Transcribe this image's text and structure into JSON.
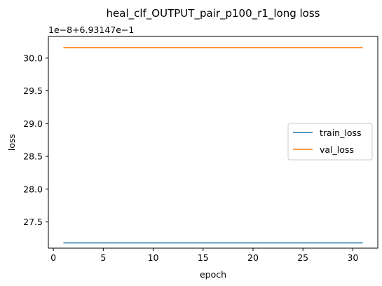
{
  "chart_data": {
    "type": "line",
    "title": "heal_clf_OUTPUT_pair_p100_r1_long loss",
    "xlabel": "epoch",
    "ylabel": "loss",
    "y_offset_text": "1e−8+6.93147e−1",
    "xlim": [
      -0.5,
      32.5
    ],
    "ylim": [
      27.1,
      30.33
    ],
    "x_ticks": [
      0,
      5,
      10,
      15,
      20,
      25,
      30
    ],
    "x_tick_labels": [
      "0",
      "5",
      "10",
      "15",
      "20",
      "25",
      "30"
    ],
    "y_ticks": [
      27.5,
      28.0,
      28.5,
      29.0,
      29.5,
      30.0
    ],
    "y_tick_labels": [
      "27.5",
      "28.0",
      "28.5",
      "29.0",
      "29.5",
      "30.0"
    ],
    "grid": false,
    "legend_position": "center-right",
    "series": [
      {
        "name": "train_loss",
        "color": "#1f77b4",
        "x": [
          1,
          31
        ],
        "y": [
          27.18,
          27.18
        ]
      },
      {
        "name": "val_loss",
        "color": "#ff7f0e",
        "x": [
          1,
          31
        ],
        "y": [
          30.16,
          30.16
        ]
      }
    ]
  }
}
